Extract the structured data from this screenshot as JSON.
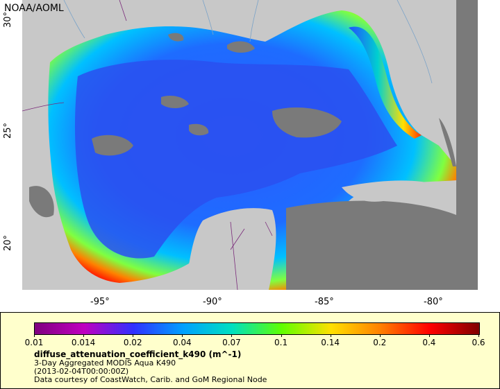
{
  "map": {
    "credit": "NOAA/AOML",
    "lat_ticks": [
      "30°",
      "25°",
      "20°"
    ],
    "lon_ticks": [
      "-95°",
      "-90°",
      "-85°",
      "-80°"
    ],
    "land_color": "#c8c8c8",
    "nodata_color": "#7a7a7a",
    "border_color": "#7a2a7a",
    "river_color": "#7aa3c8"
  },
  "legend": {
    "colorbar_ticks": [
      "0.01",
      "0.014",
      "0.02",
      "0.04",
      "0.07",
      "0.1",
      "0.14",
      "0.2",
      "0.4",
      "0.6"
    ],
    "colorbar_colors": [
      "#7f007f",
      "#c000c0",
      "#3030ff",
      "#00a0ff",
      "#00e0c0",
      "#60ff00",
      "#ffe000",
      "#ff8000",
      "#ff0000",
      "#800000"
    ],
    "variable": "diffuse_attenuation_coefficient_k490 (m^-1)",
    "product": "3-Day Aggregated MODIS Aqua K490",
    "date": "(2013-02-04T00:00:00Z)",
    "courtesy": "Data courtesy of CoastWatch, Carib. and GoM Regional Node"
  }
}
